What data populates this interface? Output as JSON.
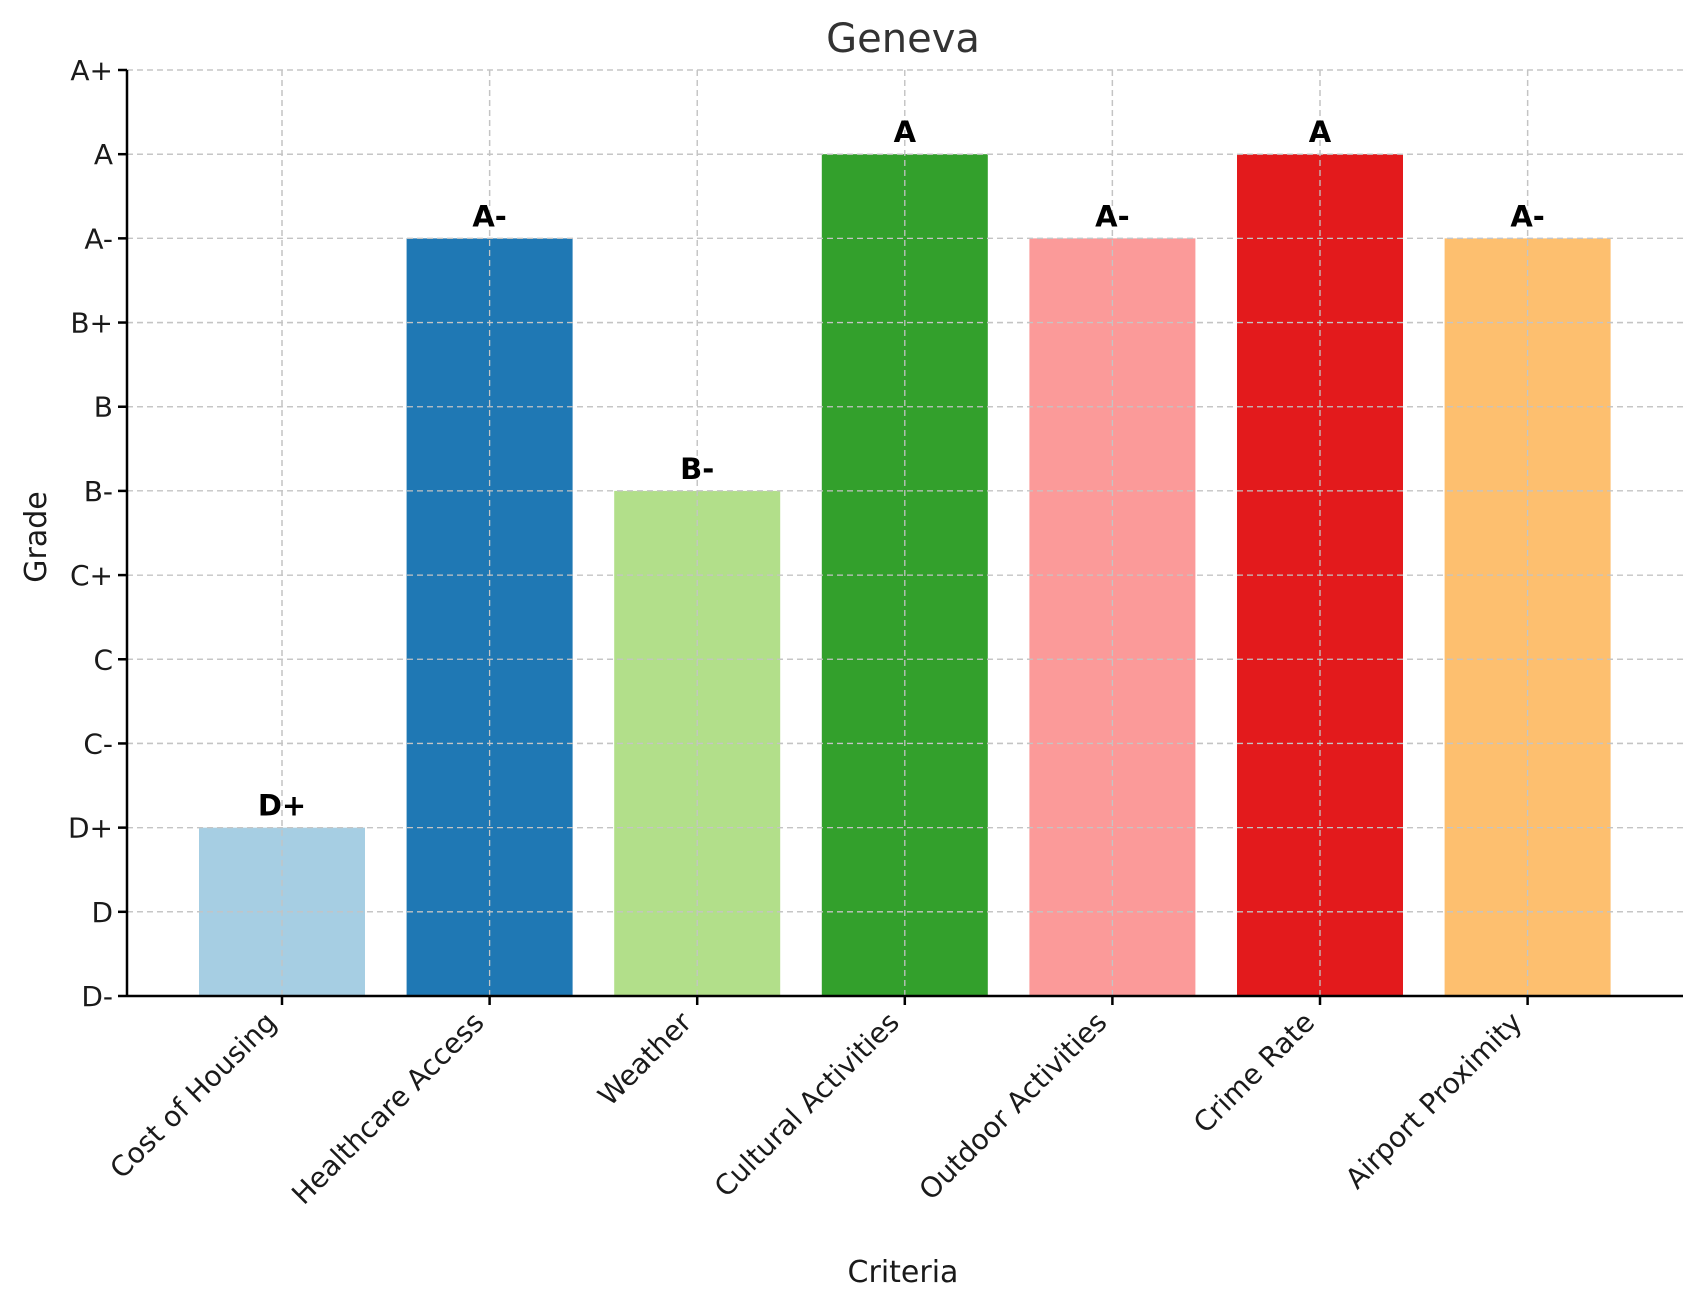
{
  "chart_data": {
    "type": "bar",
    "title": "Geneva",
    "xlabel": "Criteria",
    "ylabel": "Grade",
    "grade_scale": [
      "D-",
      "D",
      "D+",
      "C-",
      "C",
      "C+",
      "B-",
      "B",
      "B+",
      "A-",
      "A",
      "A+"
    ],
    "categories": [
      "Cost of Housing",
      "Healthcare Access",
      "Weather",
      "Cultural Activities",
      "Outdoor Activities",
      "Crime Rate",
      "Airport Proximity"
    ],
    "grades": [
      "D+",
      "A-",
      "B-",
      "A",
      "A-",
      "A",
      "A-"
    ],
    "values": [
      2,
      9,
      6,
      10,
      9,
      10,
      9
    ],
    "ylim": [
      0,
      11
    ],
    "colors": [
      "#a6cee3",
      "#1f78b4",
      "#b2df8a",
      "#33a02c",
      "#fb9a99",
      "#e31a1c",
      "#fdbf6f"
    ],
    "grid": true
  }
}
